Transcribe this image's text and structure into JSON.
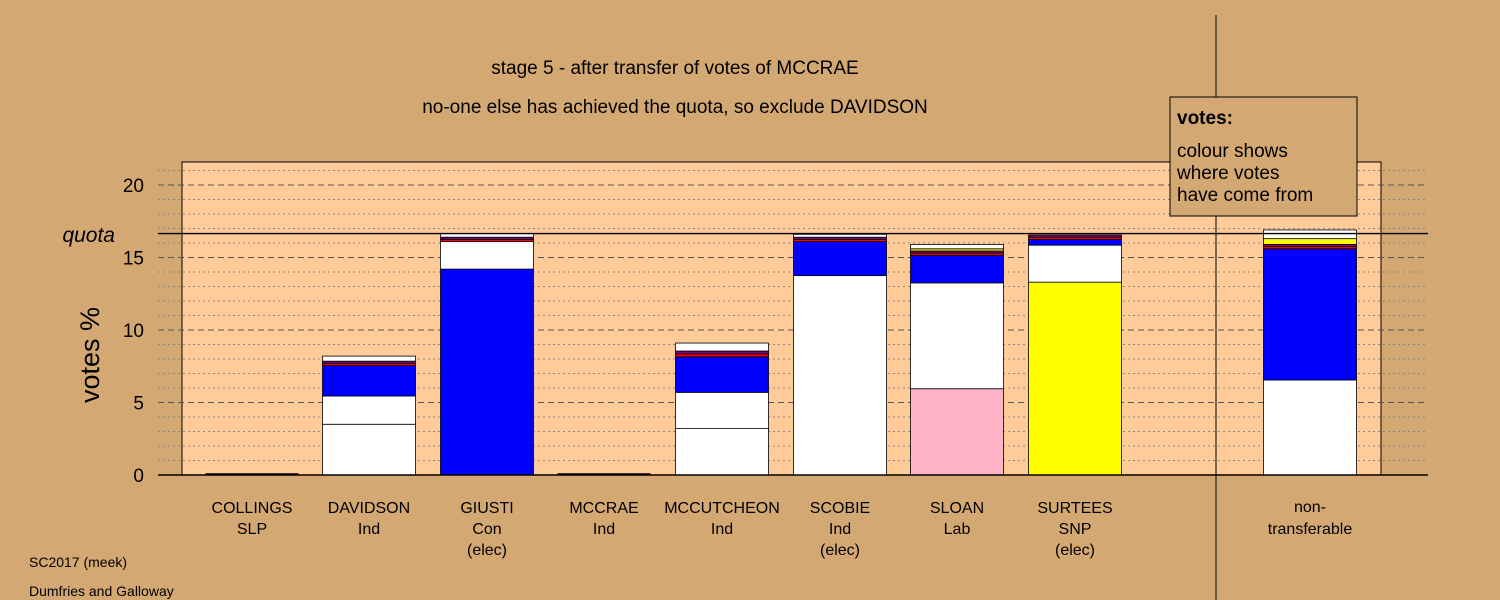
{
  "chart_data": {
    "type": "bar",
    "stacked": true,
    "title": "stage 5 - after transfer of votes of MCCRAE",
    "subtitle": "no-one else has achieved the quota, so exclude DAVIDSON",
    "ylabel": "votes %",
    "ylim": [
      0,
      21.5
    ],
    "yticks": [
      0,
      5,
      10,
      15,
      20
    ],
    "quota_label": "quota",
    "quota": 16.65,
    "grid": true,
    "legend_title": "votes:",
    "legend_text": [
      "colour shows",
      "where votes",
      "have come from"
    ],
    "colors": {
      "plot_bg": "#ffcc99",
      "page_bg": "#d4a873",
      "con": "#0000ff",
      "lab": "#ffb3c6",
      "snp": "#ffff00",
      "own": "#ffffff",
      "red": "#ff0000",
      "purple": "#800080",
      "orange": "#ff8000"
    },
    "categories": [
      {
        "name": "COLLINGS",
        "party": "SLP",
        "status": "",
        "segments": []
      },
      {
        "name": "DAVIDSON",
        "party": "Ind",
        "status": "",
        "segments": [
          {
            "value": 3.5,
            "color": "#ffffff"
          },
          {
            "value": 1.95,
            "color": "#ffffff"
          },
          {
            "value": 2.1,
            "color": "#0000ff"
          },
          {
            "value": 0.15,
            "color": "#ff0000"
          },
          {
            "value": 0.15,
            "color": "#800080"
          },
          {
            "value": 0.35,
            "color": "#ffffff"
          }
        ]
      },
      {
        "name": "GIUSTI",
        "party": "Con",
        "status": "(elec)",
        "segments": [
          {
            "value": 14.2,
            "color": "#0000ff"
          },
          {
            "value": 1.9,
            "color": "#ffffff"
          },
          {
            "value": 0.15,
            "color": "#ff0000"
          },
          {
            "value": 0.15,
            "color": "#800080"
          },
          {
            "value": 0.25,
            "color": "#ffffff"
          }
        ]
      },
      {
        "name": "MCCRAE",
        "party": "Ind",
        "status": "",
        "segments": []
      },
      {
        "name": "MCCUTCHEON",
        "party": "Ind",
        "status": "",
        "segments": [
          {
            "value": 3.2,
            "color": "#ffffff"
          },
          {
            "value": 2.5,
            "color": "#ffffff"
          },
          {
            "value": 2.45,
            "color": "#0000ff"
          },
          {
            "value": 0.2,
            "color": "#ff0000"
          },
          {
            "value": 0.2,
            "color": "#800080"
          },
          {
            "value": 0.55,
            "color": "#ffffff"
          }
        ]
      },
      {
        "name": "SCOBIE",
        "party": "Ind",
        "status": "(elec)",
        "segments": [
          {
            "value": 13.75,
            "color": "#ffffff"
          },
          {
            "value": 2.35,
            "color": "#0000ff"
          },
          {
            "value": 0.15,
            "color": "#ff0000"
          },
          {
            "value": 0.15,
            "color": "#800080"
          },
          {
            "value": 0.2,
            "color": "#ffffff"
          }
        ]
      },
      {
        "name": "SLOAN",
        "party": "Lab",
        "status": "",
        "segments": [
          {
            "value": 5.95,
            "color": "#ffb3c6"
          },
          {
            "value": 7.3,
            "color": "#ffffff"
          },
          {
            "value": 1.9,
            "color": "#0000ff"
          },
          {
            "value": 0.15,
            "color": "#ff0000"
          },
          {
            "value": 0.15,
            "color": "#800080"
          },
          {
            "value": 0.15,
            "color": "#ffff00"
          },
          {
            "value": 0.3,
            "color": "#ffffff"
          }
        ]
      },
      {
        "name": "SURTEES",
        "party": "SNP",
        "status": "(elec)",
        "segments": [
          {
            "value": 13.3,
            "color": "#ffff00"
          },
          {
            "value": 2.55,
            "color": "#ffffff"
          },
          {
            "value": 0.4,
            "color": "#0000ff"
          },
          {
            "value": 0.15,
            "color": "#ff0000"
          },
          {
            "value": 0.15,
            "color": "#800080"
          }
        ]
      }
    ],
    "nontransferable": {
      "label_line1": "non-",
      "label_line2": "transferable",
      "segments": [
        {
          "value": 6.55,
          "color": "#ffffff"
        },
        {
          "value": 9.05,
          "color": "#0000ff"
        },
        {
          "value": 0.15,
          "color": "#ff0000"
        },
        {
          "value": 0.15,
          "color": "#800080"
        },
        {
          "value": 0.4,
          "color": "#ffff00"
        },
        {
          "value": 0.6,
          "color": "#ffffff"
        }
      ]
    }
  },
  "footer": {
    "election": "SC2017 (meek)",
    "ward": "Dumfries and Galloway"
  }
}
